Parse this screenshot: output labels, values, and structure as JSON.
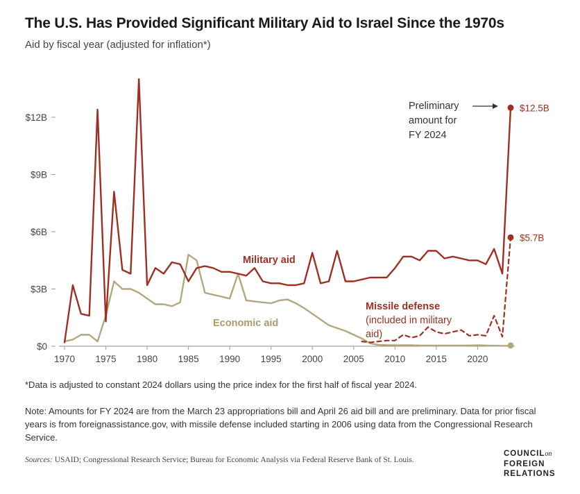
{
  "title": "The U.S. Has Provided Significant Military Aid to Israel Since the 1970s",
  "subtitle": "Aid by fiscal year (adjusted for inflation*)",
  "footnote": "*Data is adjusted to constant 2024 dollars using the price index for the first half of fiscal year 2024.",
  "note": "Note: Amounts for FY 2024 are from the March 23 appropriations bill and April 26 aid bill and are preliminary. Data for prior fiscal years is from foreignassistance.gov, with missile defense included starting in 2006 using data from the Congressional Research Service.",
  "sources_label": "Sources:",
  "sources_text": " USAID; Congressional Research Service; Bureau for Economic Analysis via Federal Reserve Bank of St. Louis.",
  "logo": {
    "line1": "COUNCIL",
    "line1_suffix": "on",
    "line2": "FOREIGN",
    "line3": "RELATIONS"
  },
  "colors": {
    "military": "#9e2f22",
    "economic": "#b3a77d",
    "missile": "#9e2f22",
    "axis": "#555555"
  },
  "chart_data": {
    "type": "line",
    "xlim": [
      1970,
      2024
    ],
    "ylim": [
      0,
      14
    ],
    "y_unit": "billions of 2024 dollars",
    "x_ticks": [
      1970,
      1975,
      1980,
      1985,
      1990,
      1995,
      2000,
      2005,
      2010,
      2015,
      2020
    ],
    "x_tick_labels": [
      "1970",
      "1975",
      "1980",
      "1985",
      "1990",
      "1995",
      "2000",
      "2005",
      "2010",
      "2015",
      "2020"
    ],
    "y_ticks": [
      0,
      3,
      6,
      9,
      12
    ],
    "y_tick_labels": [
      "$0",
      "$3B",
      "$6B",
      "$9B",
      "$12B"
    ],
    "grid": false,
    "series": [
      {
        "name": "Military aid",
        "style": "solid",
        "color": "#9e2f22",
        "x": [
          1970,
          1971,
          1972,
          1973,
          1974,
          1975,
          1976,
          1977,
          1978,
          1979,
          1980,
          1981,
          1982,
          1983,
          1984,
          1985,
          1986,
          1987,
          1988,
          1989,
          1990,
          1991,
          1992,
          1993,
          1994,
          1995,
          1996,
          1997,
          1998,
          1999,
          2000,
          2001,
          2002,
          2003,
          2004,
          2005,
          2006,
          2007,
          2008,
          2009,
          2010,
          2011,
          2012,
          2013,
          2014,
          2015,
          2016,
          2017,
          2018,
          2019,
          2020,
          2021,
          2022,
          2023,
          2024
        ],
        "y": [
          0.2,
          3.2,
          1.7,
          1.6,
          12.4,
          1.3,
          8.1,
          4.0,
          3.8,
          14.0,
          3.2,
          4.1,
          3.8,
          4.4,
          4.3,
          3.4,
          4.1,
          4.2,
          4.1,
          3.9,
          3.9,
          3.8,
          3.7,
          4.1,
          3.4,
          3.3,
          3.3,
          3.2,
          3.2,
          3.3,
          4.9,
          3.3,
          3.4,
          5.0,
          3.4,
          3.4,
          3.5,
          3.6,
          3.6,
          3.6,
          4.1,
          4.7,
          4.7,
          4.5,
          5.0,
          5.0,
          4.6,
          4.7,
          4.6,
          4.5,
          4.5,
          4.3,
          5.1,
          3.8,
          12.5
        ]
      },
      {
        "name": "Economic aid",
        "style": "solid",
        "color": "#b3a77d",
        "x": [
          1970,
          1971,
          1972,
          1973,
          1974,
          1975,
          1976,
          1977,
          1978,
          1979,
          1980,
          1981,
          1982,
          1983,
          1984,
          1985,
          1986,
          1987,
          1988,
          1989,
          1990,
          1991,
          1992,
          1993,
          1994,
          1995,
          1996,
          1997,
          1998,
          1999,
          2000,
          2001,
          2002,
          2003,
          2004,
          2005,
          2006,
          2007,
          2008,
          2009,
          2010,
          2011,
          2012,
          2013,
          2014,
          2015,
          2016,
          2017,
          2018,
          2019,
          2020,
          2021,
          2022,
          2023,
          2024
        ],
        "y": [
          0.25,
          0.35,
          0.6,
          0.6,
          0.25,
          1.6,
          3.4,
          3.0,
          3.0,
          2.8,
          2.5,
          2.2,
          2.2,
          2.1,
          2.3,
          4.8,
          4.5,
          2.8,
          2.7,
          2.6,
          2.5,
          3.8,
          2.4,
          2.35,
          2.3,
          2.25,
          2.4,
          2.45,
          2.25,
          2.0,
          1.7,
          1.4,
          1.1,
          0.95,
          0.8,
          0.6,
          0.4,
          0.15,
          0.07,
          0.06,
          0.05,
          0.05,
          0.05,
          0.04,
          0.04,
          0.04,
          0.04,
          0.04,
          0.04,
          0.04,
          0.05,
          0.04,
          0.03,
          0.02,
          0.02
        ]
      },
      {
        "name": "Missile defense",
        "note": "(included in military aid)",
        "style": "dashed",
        "color": "#9e2f22",
        "x": [
          2006,
          2007,
          2008,
          2009,
          2010,
          2011,
          2012,
          2013,
          2014,
          2015,
          2016,
          2017,
          2018,
          2019,
          2020,
          2021,
          2022,
          2023,
          2024
        ],
        "y": [
          0.25,
          0.2,
          0.25,
          0.3,
          0.3,
          0.6,
          0.45,
          0.55,
          1.0,
          0.75,
          0.65,
          0.75,
          0.85,
          0.55,
          0.6,
          0.55,
          1.6,
          0.5,
          5.7
        ]
      }
    ],
    "labels": {
      "military": "Military aid",
      "economic": "Economic aid",
      "missile_line1": "Missile defense",
      "missile_line2": "(included in military",
      "missile_line3": "aid)",
      "prelim_line1": "Preliminary",
      "prelim_line2": "amount for",
      "prelim_line3": "FY 2024",
      "value_2024_military": "$12.5B",
      "value_2024_missile": "$5.7B"
    }
  }
}
